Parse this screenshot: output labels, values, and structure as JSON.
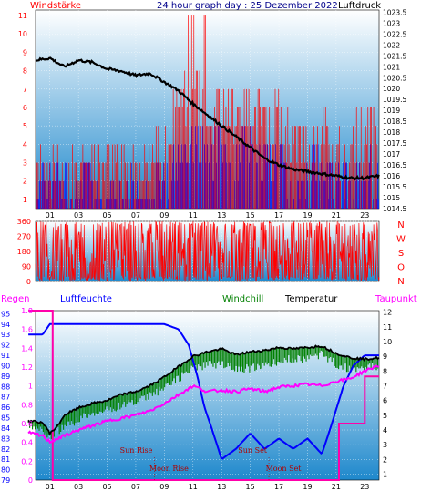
{
  "colors": {
    "windspeed": "#ff0000",
    "windgust": "#0000ff",
    "pressure": "#000000",
    "direction": "#ff0000",
    "humidity": "#0000ff",
    "windchill": "#008000",
    "temperature": "#000000",
    "dewpoint": "#ff00ff",
    "bg_top": "#ffffff",
    "bg_bottom": "#1e88cc"
  },
  "chart_data": [
    {
      "type": "bar",
      "title": "24 hour graph day : 25 Dezember 2022",
      "left_label": "Windstärke",
      "right_label": "Luftdruck",
      "x_ticks": [
        "01",
        "03",
        "05",
        "07",
        "09",
        "11",
        "13",
        "15",
        "17",
        "19",
        "21",
        "23"
      ],
      "y_left_ticks": [
        "1",
        "2",
        "3",
        "4",
        "5",
        "6",
        "7",
        "8",
        "9",
        "10",
        "11"
      ],
      "y_left_range": [
        0.5,
        11.3
      ],
      "y_right_ticks": [
        "1014.5",
        "1015",
        "1015.5",
        "1016",
        "1016.5",
        "1017",
        "1017.5",
        "1018",
        "1018.5",
        "1019",
        "1019.5",
        "1020",
        "1020.5",
        "1021",
        "1021.5",
        "1022",
        "1022.5",
        "1023",
        "1023.5"
      ],
      "y_right_range": [
        1014.5,
        1023.6
      ],
      "x_range": [
        0,
        24
      ],
      "wind_hourly": [
        [
          0,
          3
        ],
        [
          1,
          3
        ],
        [
          2,
          2.5
        ],
        [
          3,
          3
        ],
        [
          4,
          3
        ],
        [
          5,
          3
        ],
        [
          6,
          2.5
        ],
        [
          7,
          3
        ],
        [
          8,
          3
        ],
        [
          9,
          4
        ],
        [
          10,
          6
        ],
        [
          11,
          7
        ],
        [
          12,
          5.5
        ],
        [
          13,
          6
        ],
        [
          14,
          5.5
        ],
        [
          15,
          6
        ],
        [
          16,
          5
        ],
        [
          17,
          5.5
        ],
        [
          18,
          4
        ],
        [
          19,
          4
        ],
        [
          20,
          4.5
        ],
        [
          21,
          3.5
        ],
        [
          22,
          4
        ],
        [
          23,
          5
        ],
        [
          24,
          5
        ]
      ],
      "gust_hourly": [
        [
          0,
          2
        ],
        [
          1,
          2
        ],
        [
          2,
          2
        ],
        [
          3,
          2
        ],
        [
          4,
          2
        ],
        [
          5,
          1.5
        ],
        [
          6,
          1.5
        ],
        [
          7,
          1.5
        ],
        [
          8,
          1.5
        ],
        [
          9,
          2.5
        ],
        [
          10,
          3
        ],
        [
          11,
          4
        ],
        [
          12,
          3.5
        ],
        [
          13,
          3.5
        ],
        [
          14,
          3.5
        ],
        [
          15,
          3.5
        ],
        [
          16,
          3
        ],
        [
          17,
          3
        ],
        [
          18,
          2.5
        ],
        [
          19,
          2.5
        ],
        [
          20,
          3
        ],
        [
          21,
          2
        ],
        [
          22,
          2
        ],
        [
          23,
          2.5
        ],
        [
          24,
          2.5
        ]
      ],
      "pressure_hourly": [
        [
          0,
          1021.3
        ],
        [
          1,
          1021.4
        ],
        [
          2,
          1021.0
        ],
        [
          3,
          1021.3
        ],
        [
          4,
          1021.2
        ],
        [
          5,
          1020.9
        ],
        [
          6,
          1020.8
        ],
        [
          7,
          1020.6
        ],
        [
          8,
          1020.7
        ],
        [
          9,
          1020.3
        ],
        [
          10,
          1019.9
        ],
        [
          11,
          1019.3
        ],
        [
          12,
          1018.8
        ],
        [
          13,
          1018.3
        ],
        [
          14,
          1017.8
        ],
        [
          15,
          1017.3
        ],
        [
          16,
          1016.8
        ],
        [
          17,
          1016.5
        ],
        [
          18,
          1016.3
        ],
        [
          19,
          1016.2
        ],
        [
          20,
          1016.1
        ],
        [
          21,
          1016.0
        ],
        [
          22,
          1015.9
        ],
        [
          23,
          1015.9
        ],
        [
          24,
          1016.0
        ]
      ]
    },
    {
      "type": "bar",
      "subject": "wind direction",
      "y_ticks": [
        "0",
        "90",
        "180",
        "270",
        "360"
      ],
      "y_range": [
        0,
        360
      ],
      "right_labels": [
        "N",
        "W",
        "S",
        "O",
        "N"
      ],
      "x_range": [
        0,
        24
      ]
    },
    {
      "type": "line",
      "left_label": "Regen",
      "labels": [
        "Luftfeuchte",
        "Windchill",
        "Temperatur",
        "Taupunkt"
      ],
      "y_far_left_ticks": [
        "79",
        "80",
        "81",
        "82",
        "83",
        "84",
        "85",
        "86",
        "87",
        "88",
        "89",
        "90",
        "91",
        "92",
        "93",
        "94",
        "95"
      ],
      "y_far_left_range": [
        79,
        95.3
      ],
      "y_left_ticks": [
        "0",
        "0.2",
        "0.4",
        "0.6",
        "0.8",
        "1",
        "1.2",
        "1.4",
        "1.6",
        "1.8"
      ],
      "y_left_range": [
        0,
        1.8
      ],
      "y_right_ticks": [
        "1",
        "2",
        "3",
        "4",
        "5",
        "6",
        "7",
        "8",
        "9",
        "10",
        "11",
        "12"
      ],
      "y_right_range": [
        0.6,
        12.1
      ],
      "x_range": [
        0,
        24
      ],
      "x_ticks": [
        "01",
        "03",
        "05",
        "07",
        "09",
        "11",
        "13",
        "15",
        "17",
        "19",
        "21",
        "23"
      ],
      "annotations": [
        {
          "text": "Sun Rise",
          "hour": 8.3
        },
        {
          "text": "Moon Rise",
          "hour": 8.3
        },
        {
          "text": "Sun Set",
          "hour": 16.3
        },
        {
          "text": "Moon Set",
          "hour": 16.3
        }
      ],
      "humidity_hourly": [
        [
          -0.5,
          93
        ],
        [
          0.5,
          93
        ],
        [
          1,
          94
        ],
        [
          2,
          94
        ],
        [
          3,
          94
        ],
        [
          4,
          94
        ],
        [
          5,
          94
        ],
        [
          6,
          94
        ],
        [
          7,
          94
        ],
        [
          8,
          94
        ],
        [
          9,
          94
        ],
        [
          10,
          93.5
        ],
        [
          10.7,
          92
        ],
        [
          11.3,
          89
        ],
        [
          11.8,
          86
        ],
        [
          12.3,
          84
        ],
        [
          13,
          81
        ],
        [
          14,
          82
        ],
        [
          15,
          83.5
        ],
        [
          16,
          82
        ],
        [
          17,
          83
        ],
        [
          18,
          82
        ],
        [
          19,
          83
        ],
        [
          20,
          81.5
        ],
        [
          20.6,
          84
        ],
        [
          21.5,
          88
        ],
        [
          22.2,
          90
        ],
        [
          23,
          91
        ],
        [
          24,
          91
        ]
      ],
      "rain_hourly": [
        [
          -0.5,
          1.8
        ],
        [
          0.8,
          1.8
        ],
        [
          1.2,
          0
        ],
        [
          21,
          0
        ],
        [
          21.2,
          0.6
        ],
        [
          22.5,
          0.6
        ],
        [
          23,
          1.1
        ],
        [
          24,
          1.1
        ]
      ],
      "temperature_hourly": [
        [
          -0.5,
          4.6
        ],
        [
          0.5,
          4.5
        ],
        [
          1,
          3.8
        ],
        [
          1.5,
          4.2
        ],
        [
          2,
          5.0
        ],
        [
          3,
          5.5
        ],
        [
          4,
          5.8
        ],
        [
          5,
          6.0
        ],
        [
          6,
          6.4
        ],
        [
          7,
          6.6
        ],
        [
          8,
          7.0
        ],
        [
          9,
          7.6
        ],
        [
          10,
          8.3
        ],
        [
          11,
          9.0
        ],
        [
          12,
          9.3
        ],
        [
          13,
          9.5
        ],
        [
          14,
          9.1
        ],
        [
          15,
          9.3
        ],
        [
          16,
          9.4
        ],
        [
          17,
          9.6
        ],
        [
          18,
          9.5
        ],
        [
          19,
          9.6
        ],
        [
          20,
          9.7
        ],
        [
          21,
          9.2
        ],
        [
          22,
          8.9
        ],
        [
          23,
          8.8
        ],
        [
          24,
          8.9
        ]
      ],
      "windchill_hourly": [
        [
          -0.5,
          4.6
        ],
        [
          0.5,
          4.2
        ],
        [
          1,
          3.8
        ],
        [
          2,
          4.5
        ],
        [
          3,
          5.0
        ],
        [
          4,
          5.5
        ],
        [
          5,
          5.6
        ],
        [
          6,
          6.0
        ],
        [
          7,
          6.2
        ],
        [
          8,
          6.6
        ],
        [
          9,
          7.2
        ],
        [
          10,
          7.8
        ],
        [
          11,
          8.5
        ],
        [
          12,
          8.7
        ],
        [
          13,
          8.8
        ],
        [
          14,
          8.4
        ],
        [
          15,
          8.5
        ],
        [
          16,
          8.6
        ],
        [
          17,
          9.0
        ],
        [
          18,
          9.1
        ],
        [
          19,
          9.2
        ],
        [
          20,
          9.4
        ],
        [
          21,
          8.8
        ],
        [
          22,
          8.4
        ],
        [
          23,
          8.5
        ],
        [
          24,
          8.6
        ]
      ],
      "dewpoint_hourly": [
        [
          -0.5,
          3.8
        ],
        [
          0.5,
          3.6
        ],
        [
          1,
          3.2
        ],
        [
          2,
          3.6
        ],
        [
          3,
          4.0
        ],
        [
          4,
          4.3
        ],
        [
          5,
          4.6
        ],
        [
          6,
          4.8
        ],
        [
          7,
          5.0
        ],
        [
          8,
          5.3
        ],
        [
          9,
          5.8
        ],
        [
          10,
          6.4
        ],
        [
          11,
          7.0
        ],
        [
          12,
          6.6
        ],
        [
          13,
          6.7
        ],
        [
          14,
          6.6
        ],
        [
          15,
          6.8
        ],
        [
          16,
          6.6
        ],
        [
          17,
          6.9
        ],
        [
          18,
          7.0
        ],
        [
          19,
          7.1
        ],
        [
          20,
          7.0
        ],
        [
          21,
          7.3
        ],
        [
          22,
          7.5
        ],
        [
          23,
          8.0
        ],
        [
          24,
          8.4
        ]
      ]
    }
  ]
}
